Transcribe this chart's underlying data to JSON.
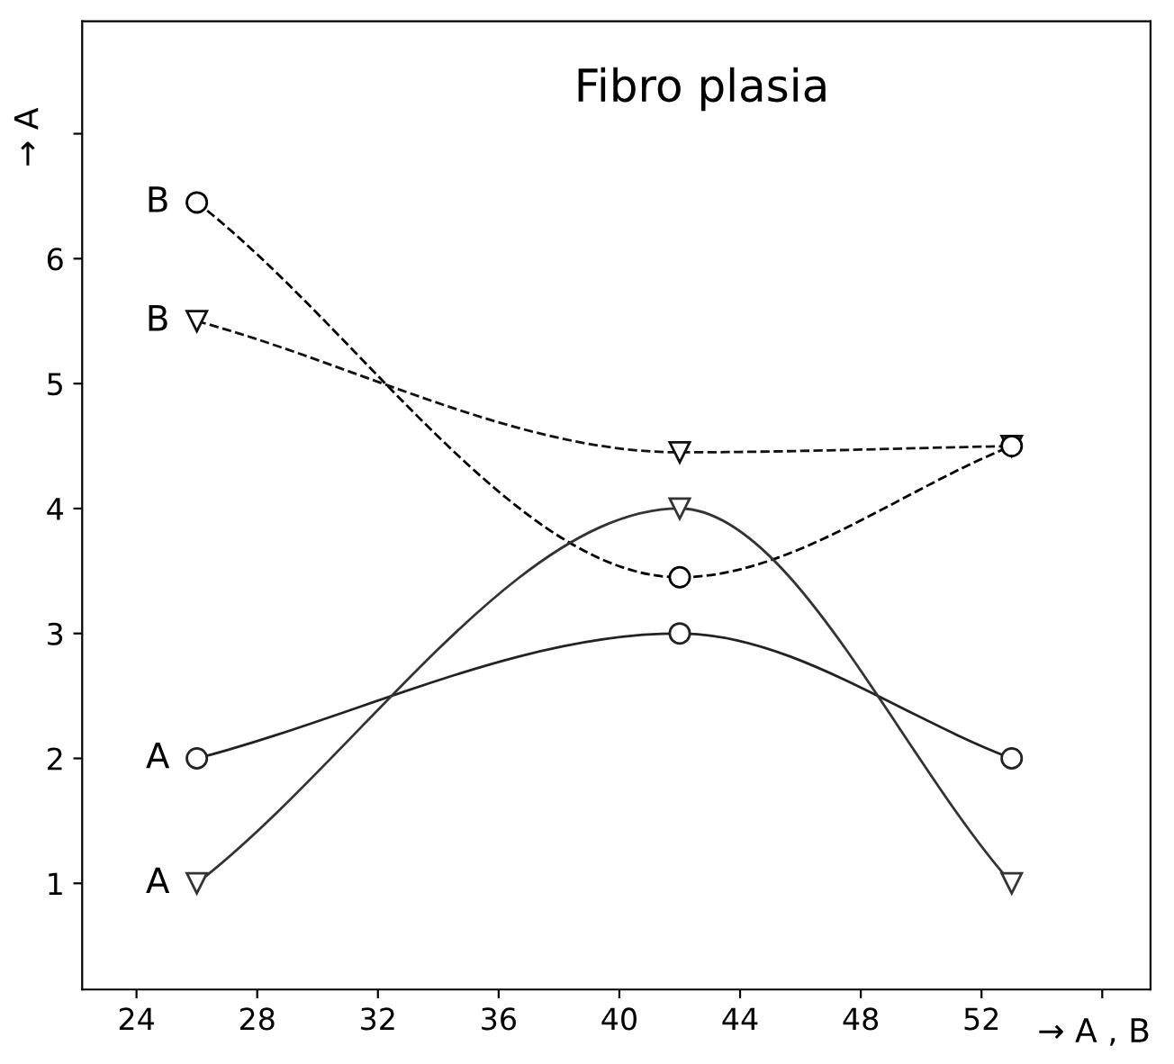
{
  "chart_data": {
    "type": "line",
    "title": "Fibro plasia",
    "xlabel": "→ A , B",
    "ylabel": "→ A",
    "x": [
      26,
      42,
      53
    ],
    "series": [
      {
        "name": "B",
        "color": "#000000",
        "values": [
          6.45,
          3.45,
          4.5
        ],
        "marker": "circle",
        "line_style": "dashed"
      },
      {
        "name": "B",
        "color": "#111111",
        "values": [
          5.5,
          4.45,
          4.5
        ],
        "marker": "triangle",
        "line_style": "dashed"
      },
      {
        "name": "A",
        "color": "#222222",
        "values": [
          2.0,
          3.0,
          2.0
        ],
        "marker": "circle",
        "line_style": "solid"
      },
      {
        "name": "A",
        "color": "#333333",
        "values": [
          1.0,
          4.0,
          1.0
        ],
        "marker": "triangle",
        "line_style": "solid"
      }
    ],
    "xlim": [
      22.2,
      57.6
    ],
    "ylim": [
      0.15,
      7.9
    ],
    "xticks": [
      24,
      28,
      32,
      36,
      40,
      44,
      48,
      52,
      {
        "value": 56,
        "label": null
      }
    ],
    "yticks": [
      1,
      2,
      3,
      4,
      5,
      6,
      {
        "value": 7,
        "label": null
      }
    ],
    "grid": false
  }
}
